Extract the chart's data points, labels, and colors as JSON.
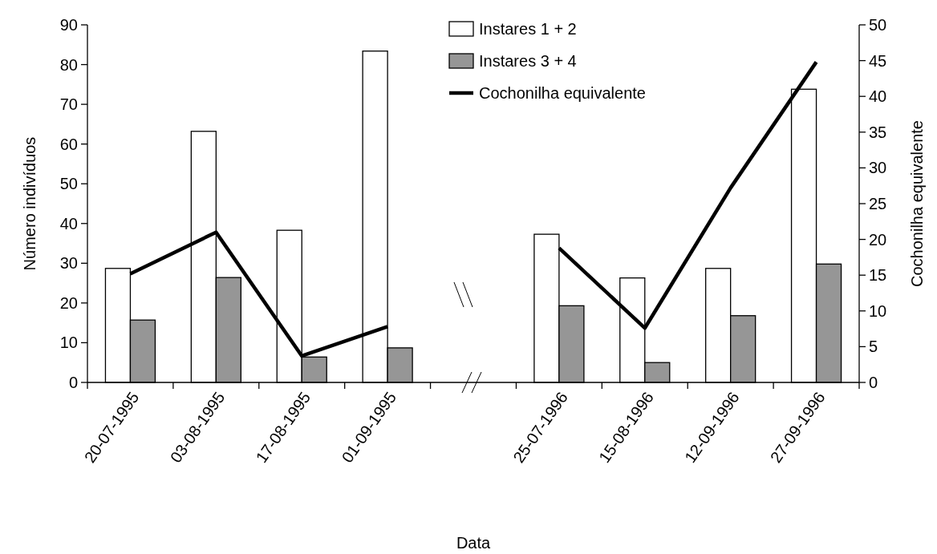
{
  "chart_data": {
    "type": "bar",
    "xlabel": "Data",
    "ylabel": "Número indivíduos",
    "y2label": "Cochonilha equivalente",
    "categories": [
      "20-07-1995",
      "03-08-1995",
      "17-08-1995",
      "01-09-1995",
      null,
      "25-07-1996",
      "15-08-1996",
      "12-09-1996",
      "27-09-1996"
    ],
    "series": [
      {
        "name": "Instares 1 + 2",
        "color": "#ffffff",
        "values": [
          28.7,
          63.2,
          38.3,
          83.4,
          null,
          37.3,
          26.3,
          28.7,
          73.8
        ]
      },
      {
        "name": "Instares 3 + 4",
        "color": "#969696",
        "values": [
          15.7,
          26.4,
          6.4,
          8.7,
          null,
          19.3,
          5.0,
          16.8,
          29.8
        ]
      },
      {
        "name": "Cochonilha equivalente",
        "type": "line",
        "axis": "y2",
        "color": "#000000",
        "values": [
          15.2,
          21.0,
          3.7,
          7.8,
          null,
          18.8,
          7.6,
          27.2,
          44.8
        ]
      }
    ],
    "ylim": [
      0,
      90
    ],
    "yticks": [
      0,
      10,
      20,
      30,
      40,
      50,
      60,
      70,
      80,
      90
    ],
    "y2lim": [
      0,
      50
    ],
    "y2ticks": [
      0,
      5,
      10,
      15,
      20,
      25,
      30,
      35,
      40,
      45,
      50
    ],
    "grid": false,
    "legend": "top",
    "marker": "none",
    "line_style": "solid"
  }
}
